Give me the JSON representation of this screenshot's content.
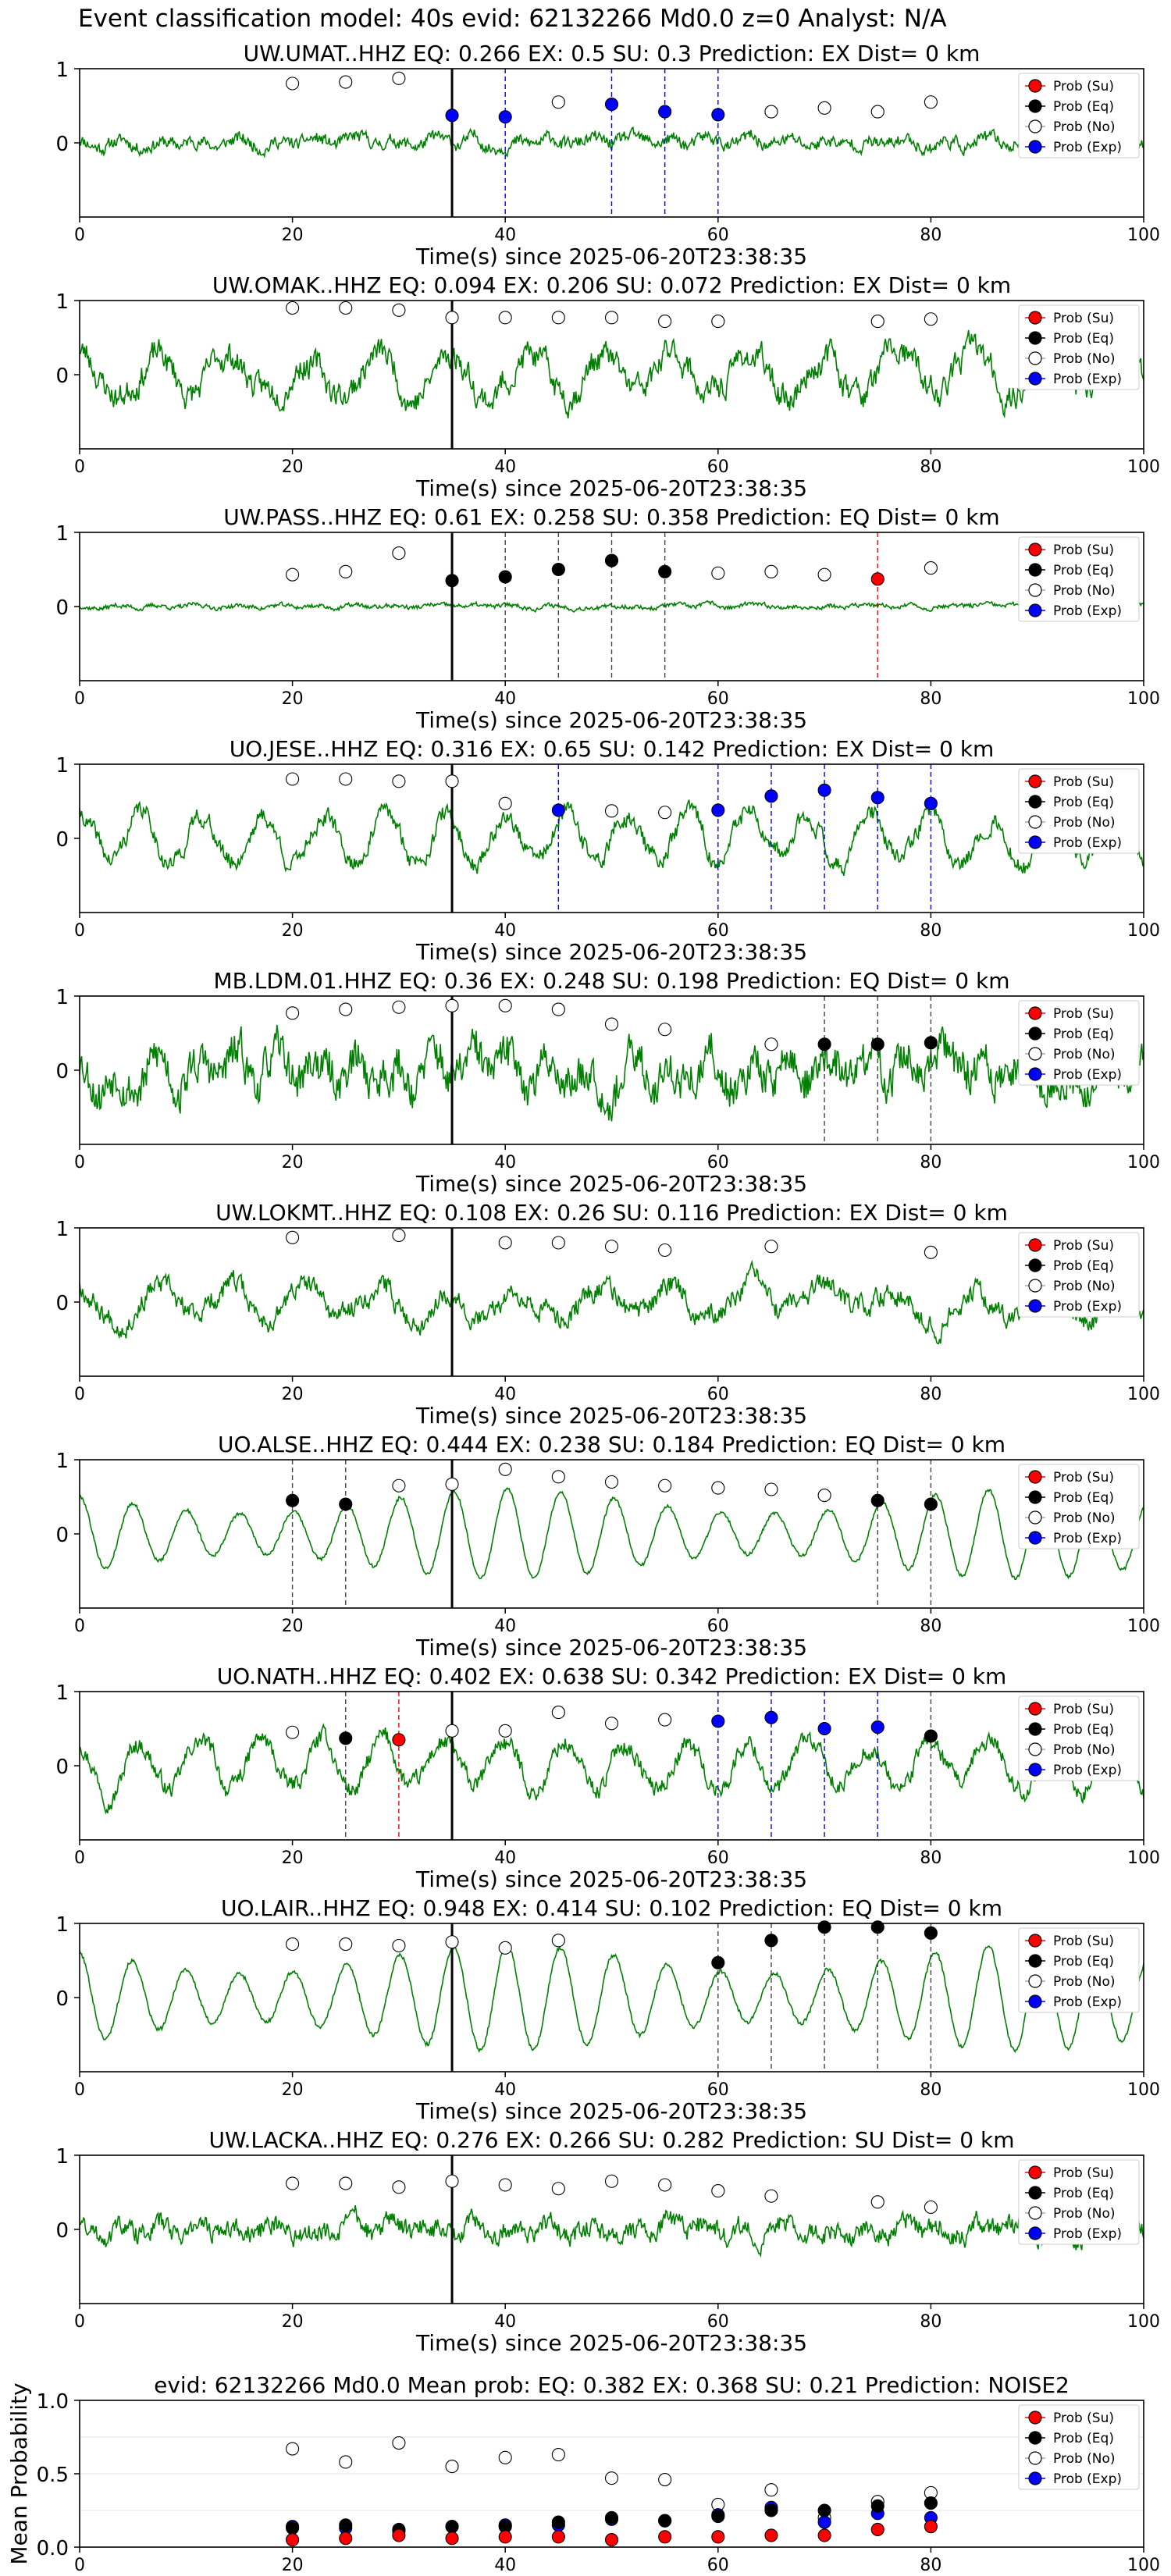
{
  "figure_title": "Event classification model: 40s evid: 62132266 Md0.0 z=0 Analyst: N/A",
  "legend_labels": [
    "Prob (Su)",
    "Prob (Eq)",
    "Prob (No)",
    "Prob (Exp)"
  ],
  "colors": {
    "su": "#ff0000",
    "eq": "#000000",
    "no": "#ffffff",
    "exp": "#0000ff",
    "waveform": "#008000",
    "reference_line": "#000000"
  },
  "xlabel": "Time(s) since 2025-06-20T23:38:35",
  "reference_time": 35,
  "chart_data": [
    {
      "type": "line",
      "title": "UW.UMAT..HHZ   EQ: 0.266   EX: 0.5   SU: 0.3   Prediction: EX    Dist= 0 km",
      "xlabel": "Time(s) since 2025-06-20T23:38:35",
      "xlim": [
        0,
        100
      ],
      "ylim": [
        -1,
        1
      ],
      "xticks": [
        "0",
        "20",
        "40",
        "60",
        "80",
        "100"
      ],
      "yticks": [
        "1",
        "0"
      ],
      "waveform": {
        "amplitude": 0.14,
        "style": "noise",
        "seed": 11
      },
      "points": [
        {
          "x": 20,
          "y": 0.8,
          "cls": "no"
        },
        {
          "x": 25,
          "y": 0.82,
          "cls": "no"
        },
        {
          "x": 30,
          "y": 0.87,
          "cls": "no"
        },
        {
          "x": 35,
          "y": 0.37,
          "cls": "exp"
        },
        {
          "x": 40,
          "y": 0.35,
          "cls": "exp"
        },
        {
          "x": 45,
          "y": 0.55,
          "cls": "no"
        },
        {
          "x": 50,
          "y": 0.52,
          "cls": "exp"
        },
        {
          "x": 55,
          "y": 0.42,
          "cls": "exp"
        },
        {
          "x": 60,
          "y": 0.38,
          "cls": "exp"
        },
        {
          "x": 65,
          "y": 0.42,
          "cls": "no"
        },
        {
          "x": 70,
          "y": 0.47,
          "cls": "no"
        },
        {
          "x": 75,
          "y": 0.42,
          "cls": "no"
        },
        {
          "x": 80,
          "y": 0.55,
          "cls": "no"
        }
      ]
    },
    {
      "type": "line",
      "title": "UW.OMAK..HHZ   EQ: 0.094   EX: 0.206   SU: 0.072   Prediction: EX    Dist= 0 km",
      "xlabel": "Time(s) since 2025-06-20T23:38:35",
      "xlim": [
        0,
        100
      ],
      "ylim": [
        -1,
        1
      ],
      "xticks": [
        "0",
        "20",
        "40",
        "60",
        "80",
        "100"
      ],
      "yticks": [
        "1",
        "0"
      ],
      "waveform": {
        "amplitude": 0.45,
        "style": "mixed",
        "seed": 23
      },
      "points": [
        {
          "x": 20,
          "y": 0.9,
          "cls": "no"
        },
        {
          "x": 25,
          "y": 0.9,
          "cls": "no"
        },
        {
          "x": 30,
          "y": 0.87,
          "cls": "no"
        },
        {
          "x": 35,
          "y": 0.77,
          "cls": "no"
        },
        {
          "x": 40,
          "y": 0.77,
          "cls": "no"
        },
        {
          "x": 45,
          "y": 0.77,
          "cls": "no"
        },
        {
          "x": 50,
          "y": 0.77,
          "cls": "no"
        },
        {
          "x": 55,
          "y": 0.72,
          "cls": "no"
        },
        {
          "x": 60,
          "y": 0.72,
          "cls": "no"
        },
        {
          "x": 75,
          "y": 0.72,
          "cls": "no"
        },
        {
          "x": 80,
          "y": 0.75,
          "cls": "no"
        }
      ]
    },
    {
      "type": "line",
      "title": "UW.PASS..HHZ   EQ: 0.61   EX: 0.258   SU: 0.358   Prediction: EQ    Dist= 0 km",
      "xlabel": "Time(s) since 2025-06-20T23:38:35",
      "xlim": [
        0,
        100
      ],
      "ylim": [
        -1,
        1
      ],
      "xticks": [
        "0",
        "20",
        "40",
        "60",
        "80",
        "100"
      ],
      "yticks": [
        "1",
        "0"
      ],
      "waveform": {
        "amplitude": 0.05,
        "style": "noise",
        "seed": 37
      },
      "points": [
        {
          "x": 20,
          "y": 0.43,
          "cls": "no"
        },
        {
          "x": 25,
          "y": 0.47,
          "cls": "no"
        },
        {
          "x": 30,
          "y": 0.72,
          "cls": "no"
        },
        {
          "x": 35,
          "y": 0.35,
          "cls": "eq"
        },
        {
          "x": 40,
          "y": 0.4,
          "cls": "eq"
        },
        {
          "x": 45,
          "y": 0.5,
          "cls": "eq"
        },
        {
          "x": 50,
          "y": 0.62,
          "cls": "eq"
        },
        {
          "x": 55,
          "y": 0.47,
          "cls": "eq"
        },
        {
          "x": 60,
          "y": 0.45,
          "cls": "no"
        },
        {
          "x": 65,
          "y": 0.47,
          "cls": "no"
        },
        {
          "x": 70,
          "y": 0.43,
          "cls": "no"
        },
        {
          "x": 75,
          "y": 0.37,
          "cls": "su"
        },
        {
          "x": 80,
          "y": 0.52,
          "cls": "no"
        }
      ]
    },
    {
      "type": "line",
      "title": "UO.JESE..HHZ   EQ: 0.316   EX: 0.65   SU: 0.142   Prediction: EX    Dist= 0 km",
      "xlabel": "Time(s) since 2025-06-20T23:38:35",
      "xlim": [
        0,
        100
      ],
      "ylim": [
        -1,
        1
      ],
      "xticks": [
        "0",
        "20",
        "40",
        "60",
        "80",
        "100"
      ],
      "yticks": [
        "1",
        "0"
      ],
      "waveform": {
        "amplitude": 0.4,
        "style": "osc",
        "seed": 41
      },
      "points": [
        {
          "x": 20,
          "y": 0.8,
          "cls": "no"
        },
        {
          "x": 25,
          "y": 0.8,
          "cls": "no"
        },
        {
          "x": 30,
          "y": 0.77,
          "cls": "no"
        },
        {
          "x": 35,
          "y": 0.77,
          "cls": "no"
        },
        {
          "x": 40,
          "y": 0.47,
          "cls": "no"
        },
        {
          "x": 45,
          "y": 0.38,
          "cls": "exp"
        },
        {
          "x": 50,
          "y": 0.37,
          "cls": "no"
        },
        {
          "x": 55,
          "y": 0.35,
          "cls": "no"
        },
        {
          "x": 60,
          "y": 0.38,
          "cls": "exp"
        },
        {
          "x": 65,
          "y": 0.57,
          "cls": "exp"
        },
        {
          "x": 70,
          "y": 0.65,
          "cls": "exp"
        },
        {
          "x": 75,
          "y": 0.55,
          "cls": "exp"
        },
        {
          "x": 80,
          "y": 0.47,
          "cls": "exp"
        }
      ]
    },
    {
      "type": "line",
      "title": "MB.LDM.01.HHZ   EQ: 0.36   EX: 0.248   SU: 0.198   Prediction: EQ    Dist= 0 km",
      "xlabel": "Time(s) since 2025-06-20T23:38:35",
      "xlim": [
        0,
        100
      ],
      "ylim": [
        -1,
        1
      ],
      "xticks": [
        "0",
        "20",
        "40",
        "60",
        "80",
        "100"
      ],
      "yticks": [
        "1",
        "0"
      ],
      "waveform": {
        "amplitude": 0.45,
        "style": "noise",
        "seed": 53
      },
      "points": [
        {
          "x": 20,
          "y": 0.77,
          "cls": "no"
        },
        {
          "x": 25,
          "y": 0.82,
          "cls": "no"
        },
        {
          "x": 30,
          "y": 0.85,
          "cls": "no"
        },
        {
          "x": 35,
          "y": 0.87,
          "cls": "no"
        },
        {
          "x": 40,
          "y": 0.87,
          "cls": "no"
        },
        {
          "x": 45,
          "y": 0.82,
          "cls": "no"
        },
        {
          "x": 50,
          "y": 0.62,
          "cls": "no"
        },
        {
          "x": 55,
          "y": 0.55,
          "cls": "no"
        },
        {
          "x": 65,
          "y": 0.35,
          "cls": "no"
        },
        {
          "x": 70,
          "y": 0.35,
          "cls": "eq"
        },
        {
          "x": 75,
          "y": 0.35,
          "cls": "eq"
        },
        {
          "x": 80,
          "y": 0.37,
          "cls": "eq"
        }
      ]
    },
    {
      "type": "line",
      "title": "UW.LOKMT..HHZ   EQ: 0.108   EX: 0.26   SU: 0.116   Prediction: EX    Dist= 0 km",
      "xlabel": "Time(s) since 2025-06-20T23:38:35",
      "xlim": [
        0,
        100
      ],
      "ylim": [
        -1,
        1
      ],
      "xticks": [
        "0",
        "20",
        "40",
        "60",
        "80",
        "100"
      ],
      "yticks": [
        "1",
        "0"
      ],
      "waveform": {
        "amplitude": 0.35,
        "style": "mixed",
        "seed": 67
      },
      "points": [
        {
          "x": 20,
          "y": 0.87,
          "cls": "no"
        },
        {
          "x": 30,
          "y": 0.9,
          "cls": "no"
        },
        {
          "x": 40,
          "y": 0.8,
          "cls": "no"
        },
        {
          "x": 45,
          "y": 0.8,
          "cls": "no"
        },
        {
          "x": 50,
          "y": 0.75,
          "cls": "no"
        },
        {
          "x": 55,
          "y": 0.7,
          "cls": "no"
        },
        {
          "x": 65,
          "y": 0.75,
          "cls": "no"
        },
        {
          "x": 80,
          "y": 0.67,
          "cls": "no"
        }
      ]
    },
    {
      "type": "line",
      "title": "UO.ALSE..HHZ   EQ: 0.444   EX: 0.238   SU: 0.184   Prediction: EQ    Dist= 0 km",
      "xlabel": "Time(s) since 2025-06-20T23:38:35",
      "xlim": [
        0,
        100
      ],
      "ylim": [
        -1,
        1
      ],
      "xticks": [
        "0",
        "20",
        "40",
        "60",
        "80",
        "100"
      ],
      "yticks": [
        "1",
        "0"
      ],
      "waveform": {
        "amplitude": 0.55,
        "style": "smooth",
        "seed": 79
      },
      "points": [
        {
          "x": 20,
          "y": 0.45,
          "cls": "eq"
        },
        {
          "x": 25,
          "y": 0.4,
          "cls": "eq"
        },
        {
          "x": 30,
          "y": 0.65,
          "cls": "no"
        },
        {
          "x": 35,
          "y": 0.67,
          "cls": "no"
        },
        {
          "x": 40,
          "y": 0.87,
          "cls": "no"
        },
        {
          "x": 45,
          "y": 0.77,
          "cls": "no"
        },
        {
          "x": 50,
          "y": 0.7,
          "cls": "no"
        },
        {
          "x": 55,
          "y": 0.65,
          "cls": "no"
        },
        {
          "x": 60,
          "y": 0.62,
          "cls": "no"
        },
        {
          "x": 65,
          "y": 0.6,
          "cls": "no"
        },
        {
          "x": 70,
          "y": 0.52,
          "cls": "no"
        },
        {
          "x": 75,
          "y": 0.45,
          "cls": "eq"
        },
        {
          "x": 80,
          "y": 0.4,
          "cls": "eq"
        }
      ]
    },
    {
      "type": "line",
      "title": "UO.NATH..HHZ   EQ: 0.402   EX: 0.638   SU: 0.342   Prediction: EX    Dist= 0 km",
      "xlabel": "Time(s) since 2025-06-20T23:38:35",
      "xlim": [
        0,
        100
      ],
      "ylim": [
        -1,
        1
      ],
      "xticks": [
        "0",
        "20",
        "40",
        "60",
        "80",
        "100"
      ],
      "yticks": [
        "1",
        "0"
      ],
      "waveform": {
        "amplitude": 0.4,
        "style": "osc",
        "seed": 97
      },
      "points": [
        {
          "x": 20,
          "y": 0.45,
          "cls": "no"
        },
        {
          "x": 25,
          "y": 0.37,
          "cls": "eq"
        },
        {
          "x": 30,
          "y": 0.35,
          "cls": "su"
        },
        {
          "x": 35,
          "y": 0.47,
          "cls": "no"
        },
        {
          "x": 40,
          "y": 0.47,
          "cls": "no"
        },
        {
          "x": 45,
          "y": 0.72,
          "cls": "no"
        },
        {
          "x": 50,
          "y": 0.57,
          "cls": "no"
        },
        {
          "x": 55,
          "y": 0.62,
          "cls": "no"
        },
        {
          "x": 60,
          "y": 0.6,
          "cls": "exp"
        },
        {
          "x": 65,
          "y": 0.65,
          "cls": "exp"
        },
        {
          "x": 70,
          "y": 0.5,
          "cls": "exp"
        },
        {
          "x": 75,
          "y": 0.52,
          "cls": "exp"
        },
        {
          "x": 80,
          "y": 0.4,
          "cls": "eq"
        }
      ]
    },
    {
      "type": "line",
      "title": "UO.LAIR..HHZ   EQ: 0.948   EX: 0.414   SU: 0.102   Prediction: EQ    Dist= 0 km",
      "xlabel": "Time(s) since 2025-06-20T23:38:35",
      "xlim": [
        0,
        100
      ],
      "ylim": [
        -1,
        1
      ],
      "xticks": [
        "0",
        "20",
        "40",
        "60",
        "80",
        "100"
      ],
      "yticks": [
        "1",
        "0"
      ],
      "waveform": {
        "amplitude": 0.65,
        "style": "smooth",
        "seed": 101
      },
      "points": [
        {
          "x": 20,
          "y": 0.72,
          "cls": "no"
        },
        {
          "x": 25,
          "y": 0.72,
          "cls": "no"
        },
        {
          "x": 30,
          "y": 0.7,
          "cls": "no"
        },
        {
          "x": 35,
          "y": 0.75,
          "cls": "no"
        },
        {
          "x": 40,
          "y": 0.67,
          "cls": "no"
        },
        {
          "x": 45,
          "y": 0.77,
          "cls": "no"
        },
        {
          "x": 60,
          "y": 0.47,
          "cls": "eq"
        },
        {
          "x": 65,
          "y": 0.77,
          "cls": "eq"
        },
        {
          "x": 70,
          "y": 0.95,
          "cls": "eq"
        },
        {
          "x": 75,
          "y": 0.95,
          "cls": "eq"
        },
        {
          "x": 80,
          "y": 0.87,
          "cls": "eq"
        }
      ]
    },
    {
      "type": "line",
      "title": "UW.LACKA..HHZ   EQ: 0.276   EX: 0.266   SU: 0.282   Prediction: SU    Dist= 0 km",
      "xlabel": "Time(s) since 2025-06-20T23:38:35",
      "xlim": [
        0,
        100
      ],
      "ylim": [
        -1,
        1
      ],
      "xticks": [
        "0",
        "20",
        "40",
        "60",
        "80",
        "100"
      ],
      "yticks": [
        "1",
        "0"
      ],
      "waveform": {
        "amplitude": 0.22,
        "style": "noise",
        "seed": 131
      },
      "points": [
        {
          "x": 20,
          "y": 0.62,
          "cls": "no"
        },
        {
          "x": 25,
          "y": 0.62,
          "cls": "no"
        },
        {
          "x": 30,
          "y": 0.57,
          "cls": "no"
        },
        {
          "x": 35,
          "y": 0.65,
          "cls": "no"
        },
        {
          "x": 40,
          "y": 0.6,
          "cls": "no"
        },
        {
          "x": 45,
          "y": 0.55,
          "cls": "no"
        },
        {
          "x": 50,
          "y": 0.65,
          "cls": "no"
        },
        {
          "x": 55,
          "y": 0.6,
          "cls": "no"
        },
        {
          "x": 60,
          "y": 0.52,
          "cls": "no"
        },
        {
          "x": 65,
          "y": 0.45,
          "cls": "no"
        },
        {
          "x": 75,
          "y": 0.37,
          "cls": "no"
        },
        {
          "x": 80,
          "y": 0.3,
          "cls": "no"
        }
      ]
    },
    {
      "type": "scatter",
      "title": "evid: 62132266  Md0.0   Mean prob:   EQ: 0.382  EX: 0.368  SU: 0.21   Prediction: NOISE2",
      "xlabel": "",
      "ylabel": "Mean Probability",
      "xlim": [
        0,
        100
      ],
      "ylim": [
        0,
        1
      ],
      "xticks": [
        "0",
        "20",
        "40",
        "60",
        "80",
        "100"
      ],
      "yticks": [
        "0.0",
        "0.5",
        "1.0"
      ],
      "x": [
        20,
        25,
        30,
        35,
        40,
        45,
        50,
        55,
        60,
        65,
        70,
        75,
        80
      ],
      "series": [
        {
          "name": "Prob (No)",
          "cls": "no",
          "values": [
            0.67,
            0.58,
            0.71,
            0.55,
            0.61,
            0.63,
            0.47,
            0.46,
            0.29,
            0.39,
            0.2,
            0.31,
            0.37
          ]
        },
        {
          "name": "Prob (Exp)",
          "cls": "exp",
          "values": [
            0.14,
            0.13,
            0.11,
            0.14,
            0.15,
            0.15,
            0.19,
            0.18,
            0.22,
            0.27,
            0.17,
            0.23,
            0.2
          ]
        },
        {
          "name": "Prob (Eq)",
          "cls": "eq",
          "values": [
            0.13,
            0.15,
            0.12,
            0.14,
            0.14,
            0.17,
            0.2,
            0.18,
            0.21,
            0.25,
            0.25,
            0.28,
            0.3
          ]
        },
        {
          "name": "Prob (Su)",
          "cls": "su",
          "values": [
            0.05,
            0.06,
            0.08,
            0.06,
            0.07,
            0.07,
            0.05,
            0.07,
            0.07,
            0.08,
            0.08,
            0.12,
            0.14
          ]
        }
      ]
    }
  ]
}
